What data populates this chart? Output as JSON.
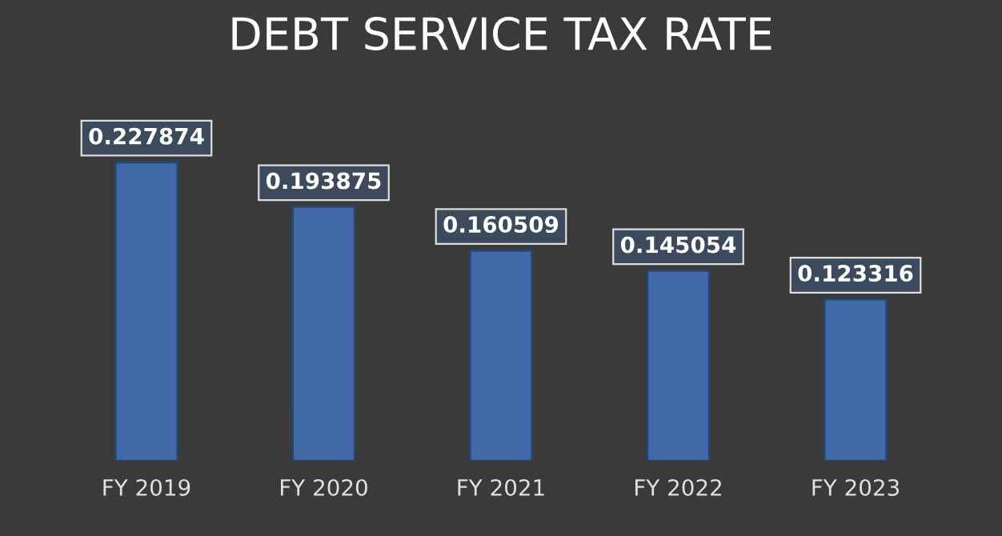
{
  "chart_data": {
    "type": "bar",
    "title": "DEBT SERVICE TAX RATE",
    "categories": [
      "FY 2019",
      "FY 2020",
      "FY 2021",
      "FY 2022",
      "FY 2023"
    ],
    "values": [
      0.227874,
      0.193875,
      0.160509,
      0.145054,
      0.123316
    ],
    "color": "#4169a8",
    "data_labels": true,
    "grid": false,
    "legend": false
  }
}
